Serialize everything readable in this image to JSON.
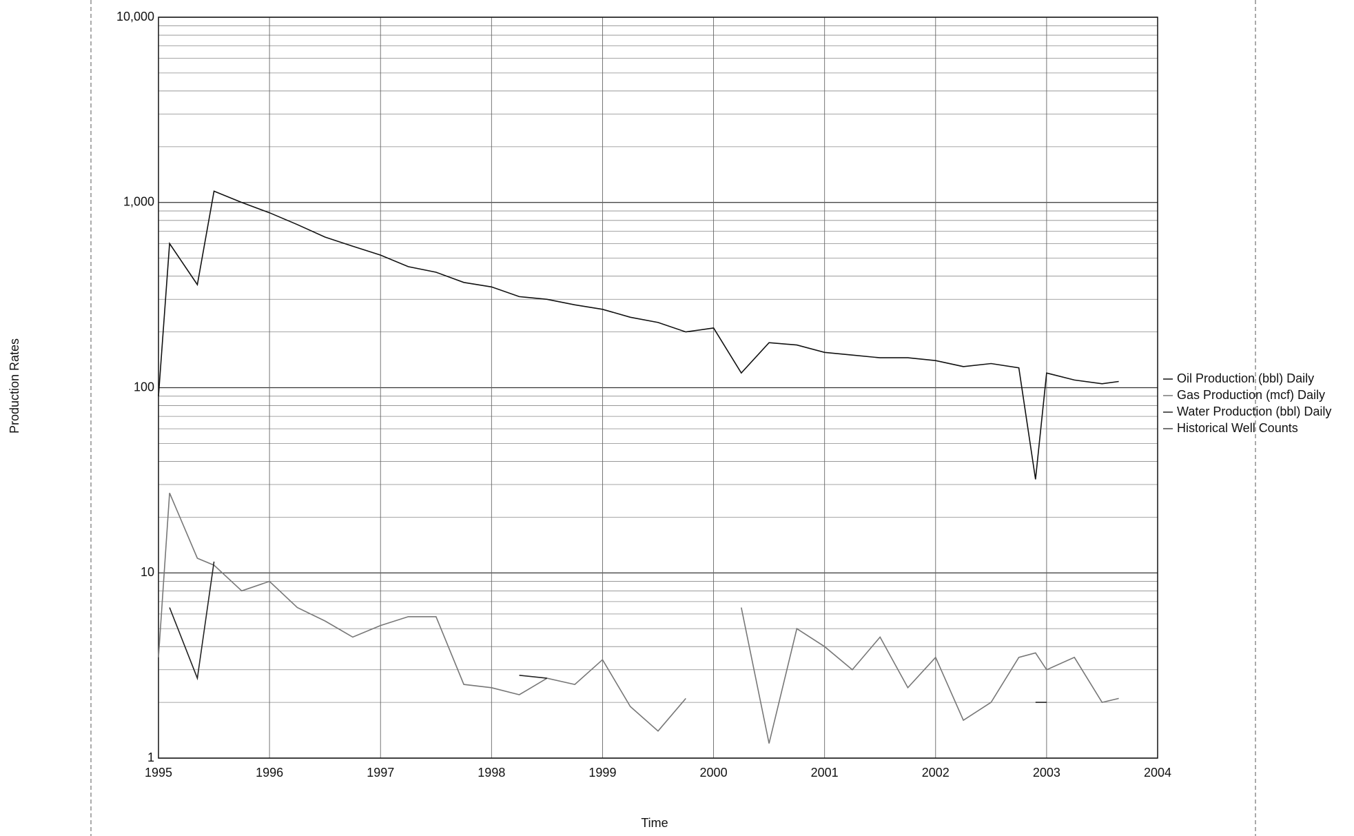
{
  "chart_data": {
    "type": "line",
    "y_label": "Production Rates",
    "x_label": "Time",
    "log_y": true,
    "grid": true,
    "legend": "right",
    "x": [
      1995.0,
      1995.1,
      1995.35,
      1995.5,
      1995.75,
      1996.0,
      1996.25,
      1996.5,
      1996.75,
      1997.0,
      1997.25,
      1997.5,
      1997.75,
      1998.0,
      1998.25,
      1998.5,
      1998.75,
      1999.0,
      1999.25,
      1999.5,
      1999.75,
      2000.0,
      2000.25,
      2000.5,
      2000.75,
      2001.0,
      2001.25,
      2001.5,
      2001.75,
      2002.0,
      2002.25,
      2002.5,
      2002.75,
      2002.9,
      2003.0,
      2003.25,
      2003.5,
      2003.65
    ],
    "series": [
      {
        "name": "Oil Production (bbl) Daily",
        "color": "#111111",
        "values": [
          90,
          600,
          360,
          1150,
          1000,
          880,
          760,
          650,
          580,
          520,
          450,
          420,
          370,
          350,
          310,
          300,
          280,
          265,
          240,
          225,
          200,
          210,
          120,
          175,
          170,
          155,
          150,
          145,
          145,
          140,
          130,
          135,
          128,
          32,
          120,
          110,
          105,
          108
        ]
      },
      {
        "name": "Gas Production (mcf) Daily",
        "color": "#777777",
        "values": [
          3.5,
          27,
          12,
          11,
          8,
          9,
          6.5,
          5.5,
          4.5,
          5.2,
          5.8,
          5.8,
          2.5,
          2.4,
          2.2,
          2.7,
          2.5,
          3.4,
          1.9,
          1.4,
          2.1,
          null,
          6.5,
          1.2,
          5,
          4,
          3,
          4.5,
          2.4,
          3.5,
          1.6,
          2,
          3.5,
          3.7,
          3,
          3.5,
          2,
          2.1
        ]
      },
      {
        "name": "Water Production (bbl) Daily",
        "color": "#222222",
        "values": [
          null,
          6.5,
          2.7,
          11.5,
          null,
          null,
          null,
          null,
          null,
          null,
          null,
          null,
          null,
          null,
          2.8,
          2.7,
          null,
          null,
          null,
          null,
          null,
          null,
          6,
          null,
          null,
          null,
          2.8,
          null,
          null,
          null,
          null,
          null,
          null,
          2.0,
          2.0,
          null,
          null,
          null
        ]
      },
      {
        "name": "Historical Well Counts",
        "color": "#444444",
        "values": [
          null,
          null,
          null,
          null,
          null,
          null,
          null,
          null,
          null,
          null,
          null,
          null,
          null,
          null,
          null,
          null,
          null,
          null,
          null,
          null,
          null,
          null,
          null,
          null,
          null,
          null,
          null,
          null,
          null,
          null,
          null,
          null,
          null,
          null,
          null,
          null,
          null,
          null
        ]
      }
    ],
    "xlim": [
      1995,
      2004
    ],
    "xticks": [
      1995,
      1996,
      1997,
      1998,
      1999,
      2000,
      2001,
      2002,
      2003,
      2004
    ],
    "ylim": [
      1,
      10000
    ],
    "yticks": [
      1,
      10,
      100,
      {
        "value": 1000,
        "label": "1,000"
      },
      {
        "value": 10000,
        "label": "10,000"
      }
    ],
    "yminorticks": [
      2,
      3,
      4,
      5,
      6,
      7,
      8,
      9,
      20,
      30,
      40,
      50,
      60,
      70,
      80,
      90,
      200,
      300,
      400,
      500,
      600,
      700,
      800,
      900,
      2000,
      3000,
      4000,
      5000,
      6000,
      7000,
      8000,
      9000
    ]
  }
}
